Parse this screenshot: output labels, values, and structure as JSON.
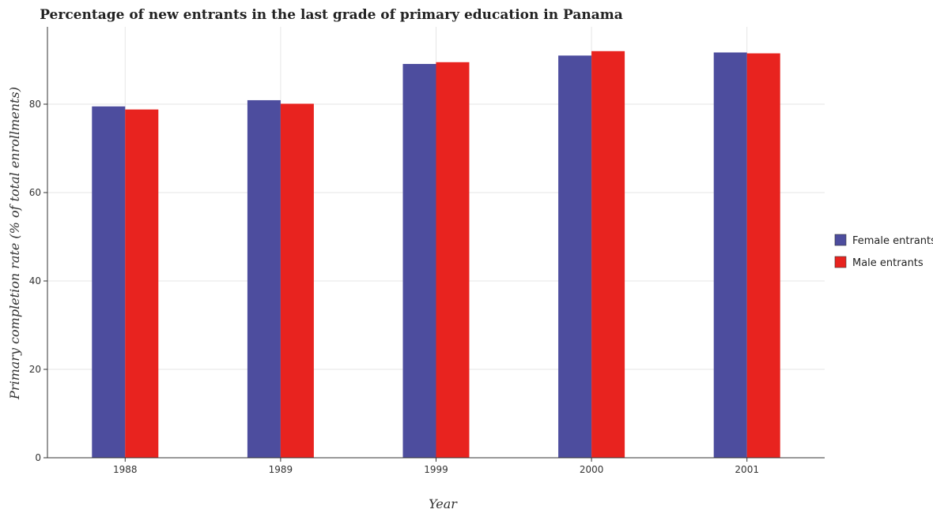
{
  "chart_data": {
    "type": "bar",
    "title": "Percentage of new entrants in the last grade of primary education in Panama",
    "xlabel": "Year",
    "ylabel": "Primary completion rate (% of total enrollments)",
    "categories": [
      "1988",
      "1989",
      "1999",
      "2000",
      "2001"
    ],
    "series": [
      {
        "name": "Female entrants",
        "color": "#4d4d9e",
        "values": [
          79.5,
          80.9,
          89.1,
          91.0,
          91.7
        ]
      },
      {
        "name": "Male entrants",
        "color": "#e8231f",
        "values": [
          78.8,
          80.1,
          89.5,
          92.0,
          91.5
        ]
      }
    ],
    "ylim": [
      0,
      97.5
    ],
    "yticks": [
      0,
      20,
      40,
      60,
      80
    ],
    "grid": true,
    "legend_position": "right"
  }
}
